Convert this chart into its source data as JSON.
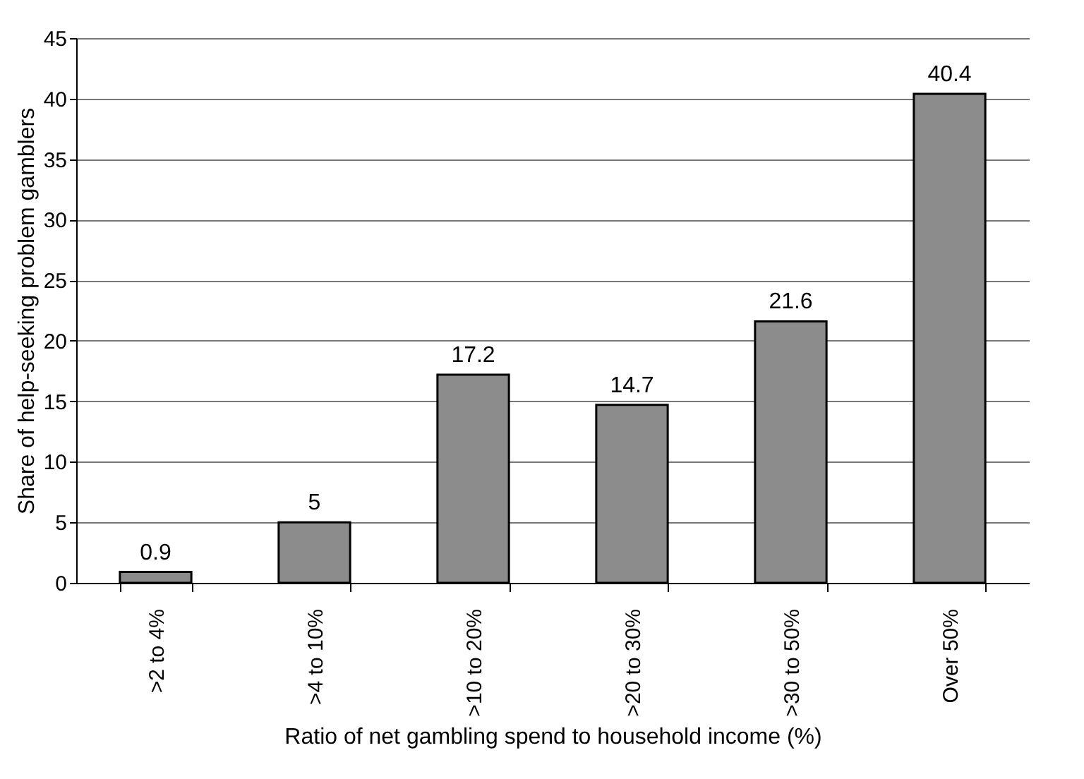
{
  "chart_data": {
    "type": "bar",
    "xlabel": "Ratio of net gambling spend to household income (%)",
    "ylabel": "Share of help-seeking problem gamblers",
    "categories": [
      ">2 to 4%",
      ">4 to 10%",
      ">10 to 20%",
      ">20 to 30%",
      ">30 to 50%",
      "Over 50%"
    ],
    "values": [
      0.9,
      5,
      17.2,
      14.7,
      21.6,
      40.4
    ],
    "color": "#8c8c8c",
    "ylim": [
      0,
      45
    ],
    "yticks": [
      0,
      5,
      10,
      15,
      20,
      25,
      30,
      35,
      40,
      45
    ],
    "grid": "y",
    "data_labels": true
  }
}
